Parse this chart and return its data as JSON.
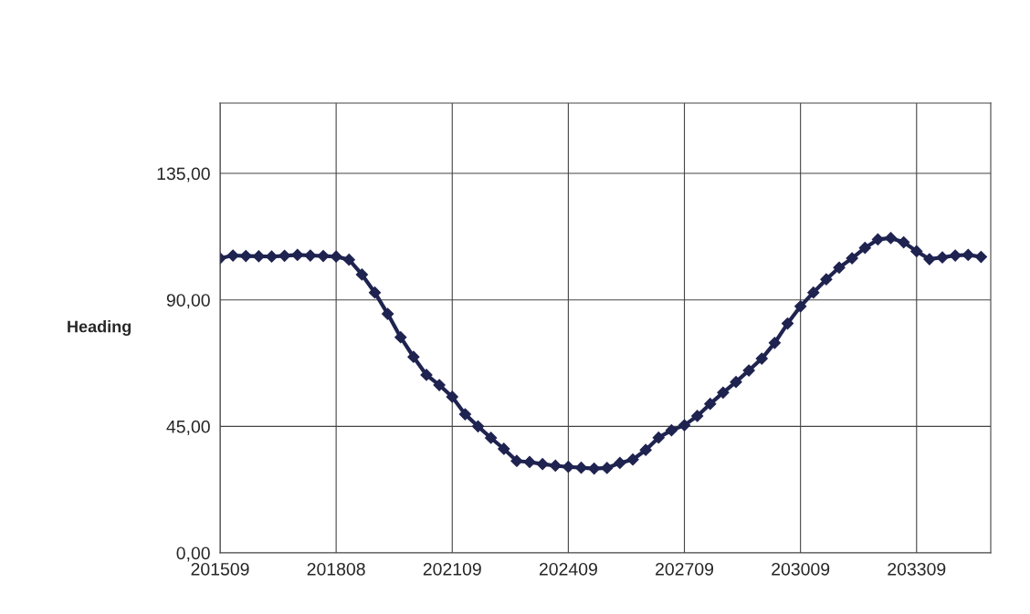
{
  "chart_data": {
    "type": "line",
    "ylabel": "Heading",
    "categories": [
      "201509",
      null,
      null,
      null,
      null,
      null,
      null,
      null,
      null,
      "201808",
      null,
      null,
      null,
      null,
      null,
      null,
      null,
      null,
      "202109",
      null,
      null,
      null,
      null,
      null,
      null,
      null,
      null,
      "202409",
      null,
      null,
      null,
      null,
      null,
      null,
      null,
      null,
      "202709",
      null,
      null,
      null,
      null,
      null,
      null,
      null,
      null,
      "203009",
      null,
      null,
      null,
      null,
      null,
      null,
      null,
      null,
      "203309",
      null,
      null,
      null,
      null,
      null
    ],
    "series": [
      {
        "color": "#1f2350",
        "values": [
          104.8,
          105.8,
          105.6,
          105.5,
          105.4,
          105.7,
          106,
          105.8,
          105.6,
          105.4,
          104.3,
          99,
          92.6,
          85,
          76.7,
          69.7,
          63.3,
          59.7,
          55.5,
          49.3,
          45,
          40.9,
          37,
          32.7,
          32.3,
          31.6,
          31,
          30.6,
          30.3,
          30,
          30.2,
          32,
          33.2,
          36.6,
          41,
          43.6,
          45.4,
          48.7,
          53,
          57,
          60.8,
          64.9,
          69.1,
          74.7,
          81.6,
          87.7,
          92.6,
          97.3,
          101.5,
          104.8,
          108.5,
          111.5,
          112,
          110.5,
          107.3,
          104.5,
          105.1,
          105.8,
          106,
          105.3
        ]
      }
    ],
    "ylim": [
      0,
      160
    ],
    "yticks": [
      {
        "value": 0,
        "label": "0,00"
      },
      {
        "value": 45,
        "label": "45,00"
      },
      {
        "value": 90,
        "label": "90,00"
      },
      {
        "value": 135,
        "label": "135,00"
      }
    ],
    "grid": true,
    "marker": "diamond",
    "line_style": "solid"
  }
}
